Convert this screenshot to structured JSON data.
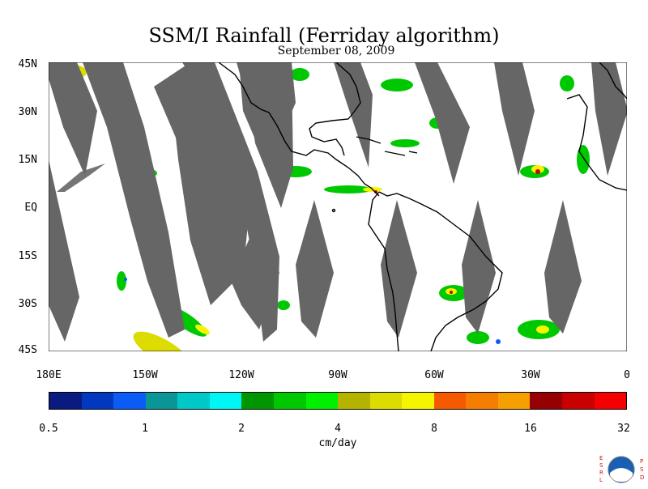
{
  "title": "SSM/I Rainfall (Ferriday algorithm)",
  "subtitle": "September 08, 2009",
  "lat_labels": [
    "45N",
    "30N",
    "15N",
    "EQ",
    "15S",
    "30S",
    "45S"
  ],
  "lon_labels": [
    "180E",
    "150W",
    "120W",
    "90W",
    "60W",
    "30W",
    "0"
  ],
  "colorbar": {
    "colors": [
      "#0a1a80",
      "#0038c0",
      "#0a5cf5",
      "#0a9696",
      "#00c8c8",
      "#00f5f5",
      "#009600",
      "#00c800",
      "#00f000",
      "#b4b400",
      "#dcdc00",
      "#f5f500",
      "#f55a00",
      "#f57e00",
      "#f5a000",
      "#960000",
      "#c80000",
      "#f50000"
    ],
    "tick_labels": [
      "0.5",
      "1",
      "2",
      "4",
      "8",
      "16",
      "32"
    ]
  },
  "units": "cm/day",
  "logo_text": "ESRL PSD",
  "colors": {
    "swath_gap": "#666666",
    "coastline": "#000000"
  }
}
